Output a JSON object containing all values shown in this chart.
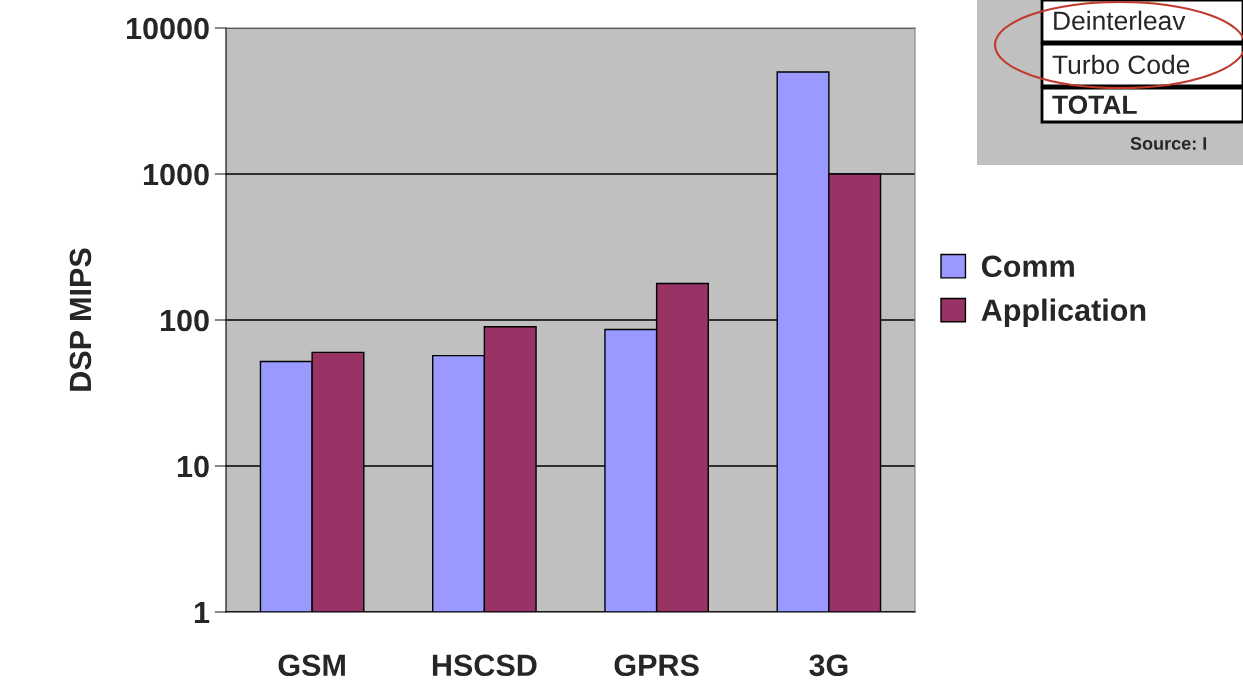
{
  "chart_data": {
    "type": "bar",
    "ylabel": "DSP MIPS",
    "categories": [
      "GSM",
      "HSCSD",
      "GPRS",
      "3G"
    ],
    "series": [
      {
        "name": "Comm",
        "color": "#9999ff",
        "values": [
          51,
          56,
          85,
          5000
        ]
      },
      {
        "name": "Application",
        "color": "#993366",
        "values": [
          59,
          89,
          177,
          1000
        ]
      }
    ],
    "log": "y",
    "ylim": [
      1,
      10000
    ],
    "yticks": [
      1,
      10,
      100,
      1000,
      10000
    ],
    "grid": "y",
    "legend": "right",
    "annotations": [
      "Deinterleav",
      "Turbo Code",
      "TOTAL",
      "Source: I"
    ]
  }
}
